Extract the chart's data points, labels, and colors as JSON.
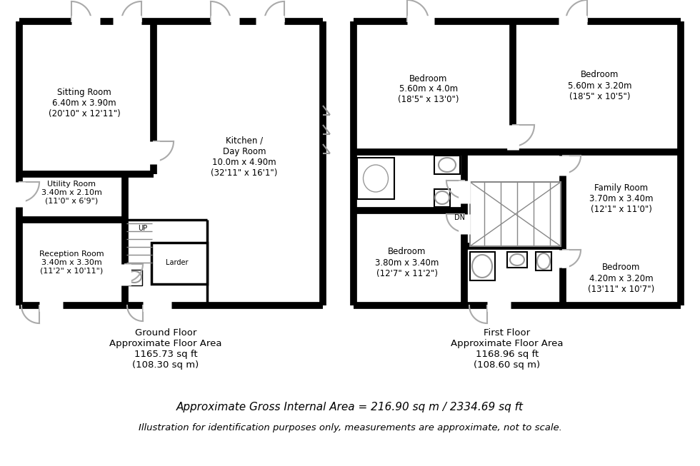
{
  "bg_color": "#ffffff",
  "wall_lw": 7,
  "inner_lw": 2.5,
  "thin_lw": 1.5,
  "ground_floor_text": "Ground Floor\nApproximate Floor Area\n1165.73 sq ft\n(108.30 sq m)",
  "first_floor_text": "First Floor\nApproximate Floor Area\n1168.96 sq ft\n(108.60 sq m)",
  "gross_area": "Approximate Gross Internal Area = 216.90 sq m / 2334.69 sq ft",
  "disclaimer": "Illustration for identification purposes only, measurements are approximate, not to scale."
}
